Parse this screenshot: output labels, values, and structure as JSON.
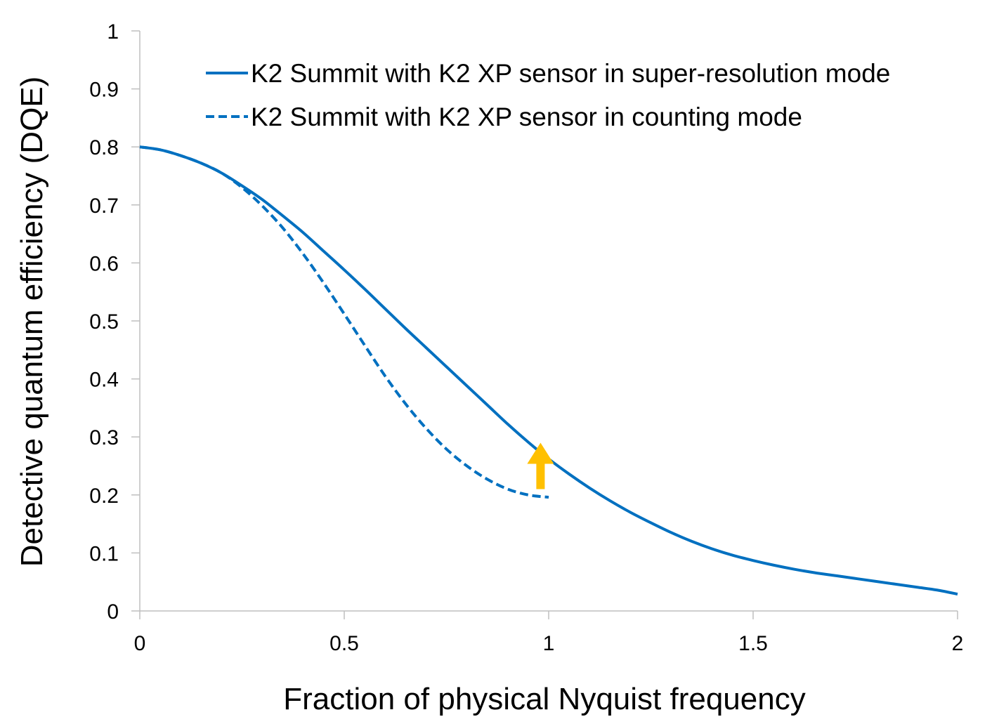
{
  "chart_data": {
    "type": "line",
    "xlabel": "Fraction of physical Nyquist frequency",
    "ylabel": "Detective quantum efficiency (DQE)",
    "xlim": [
      0,
      2
    ],
    "ylim": [
      0,
      1
    ],
    "x_ticks": [
      "0",
      "0.5",
      "1",
      "1.5",
      "2"
    ],
    "y_ticks": [
      "0",
      "0.1",
      "0.2",
      "0.3",
      "0.4",
      "0.5",
      "0.6",
      "0.7",
      "0.8",
      "0.9",
      "1"
    ],
    "grid": false,
    "legend_position": "top-right",
    "series": [
      {
        "name": "K2 Summit with K2 XP sensor in super-resolution mode",
        "style": "solid",
        "color": "#0070C0",
        "x": [
          0,
          0.05,
          0.1,
          0.15,
          0.2,
          0.25,
          0.3,
          0.35,
          0.4,
          0.45,
          0.5,
          0.55,
          0.6,
          0.65,
          0.7,
          0.75,
          0.8,
          0.85,
          0.9,
          0.95,
          1.0,
          1.05,
          1.1,
          1.15,
          1.2,
          1.25,
          1.3,
          1.35,
          1.4,
          1.45,
          1.5,
          1.55,
          1.6,
          1.65,
          1.7,
          1.75,
          1.8,
          1.85,
          1.9,
          1.95,
          2.0
        ],
        "y": [
          0.8,
          0.795,
          0.785,
          0.772,
          0.755,
          0.733,
          0.709,
          0.681,
          0.652,
          0.62,
          0.588,
          0.555,
          0.521,
          0.487,
          0.454,
          0.421,
          0.388,
          0.355,
          0.322,
          0.291,
          0.262,
          0.236,
          0.212,
          0.19,
          0.17,
          0.152,
          0.135,
          0.12,
          0.107,
          0.096,
          0.087,
          0.079,
          0.072,
          0.066,
          0.061,
          0.056,
          0.051,
          0.046,
          0.041,
          0.036,
          0.029
        ]
      },
      {
        "name": "K2 Summit with K2 XP sensor in counting mode",
        "style": "dashed",
        "color": "#0070C0",
        "x": [
          0,
          0.05,
          0.1,
          0.15,
          0.2,
          0.25,
          0.3,
          0.35,
          0.4,
          0.45,
          0.5,
          0.55,
          0.6,
          0.65,
          0.7,
          0.75,
          0.8,
          0.85,
          0.9,
          0.95,
          1.0
        ],
        "y": [
          0.8,
          0.795,
          0.785,
          0.772,
          0.755,
          0.73,
          0.698,
          0.66,
          0.615,
          0.565,
          0.512,
          0.458,
          0.405,
          0.357,
          0.315,
          0.279,
          0.25,
          0.227,
          0.21,
          0.2,
          0.196
        ]
      }
    ],
    "annotations": [
      {
        "type": "arrow",
        "direction": "up",
        "color": "#FFC000",
        "x": 0.98,
        "y_from": 0.21,
        "y_to": 0.29
      }
    ]
  }
}
